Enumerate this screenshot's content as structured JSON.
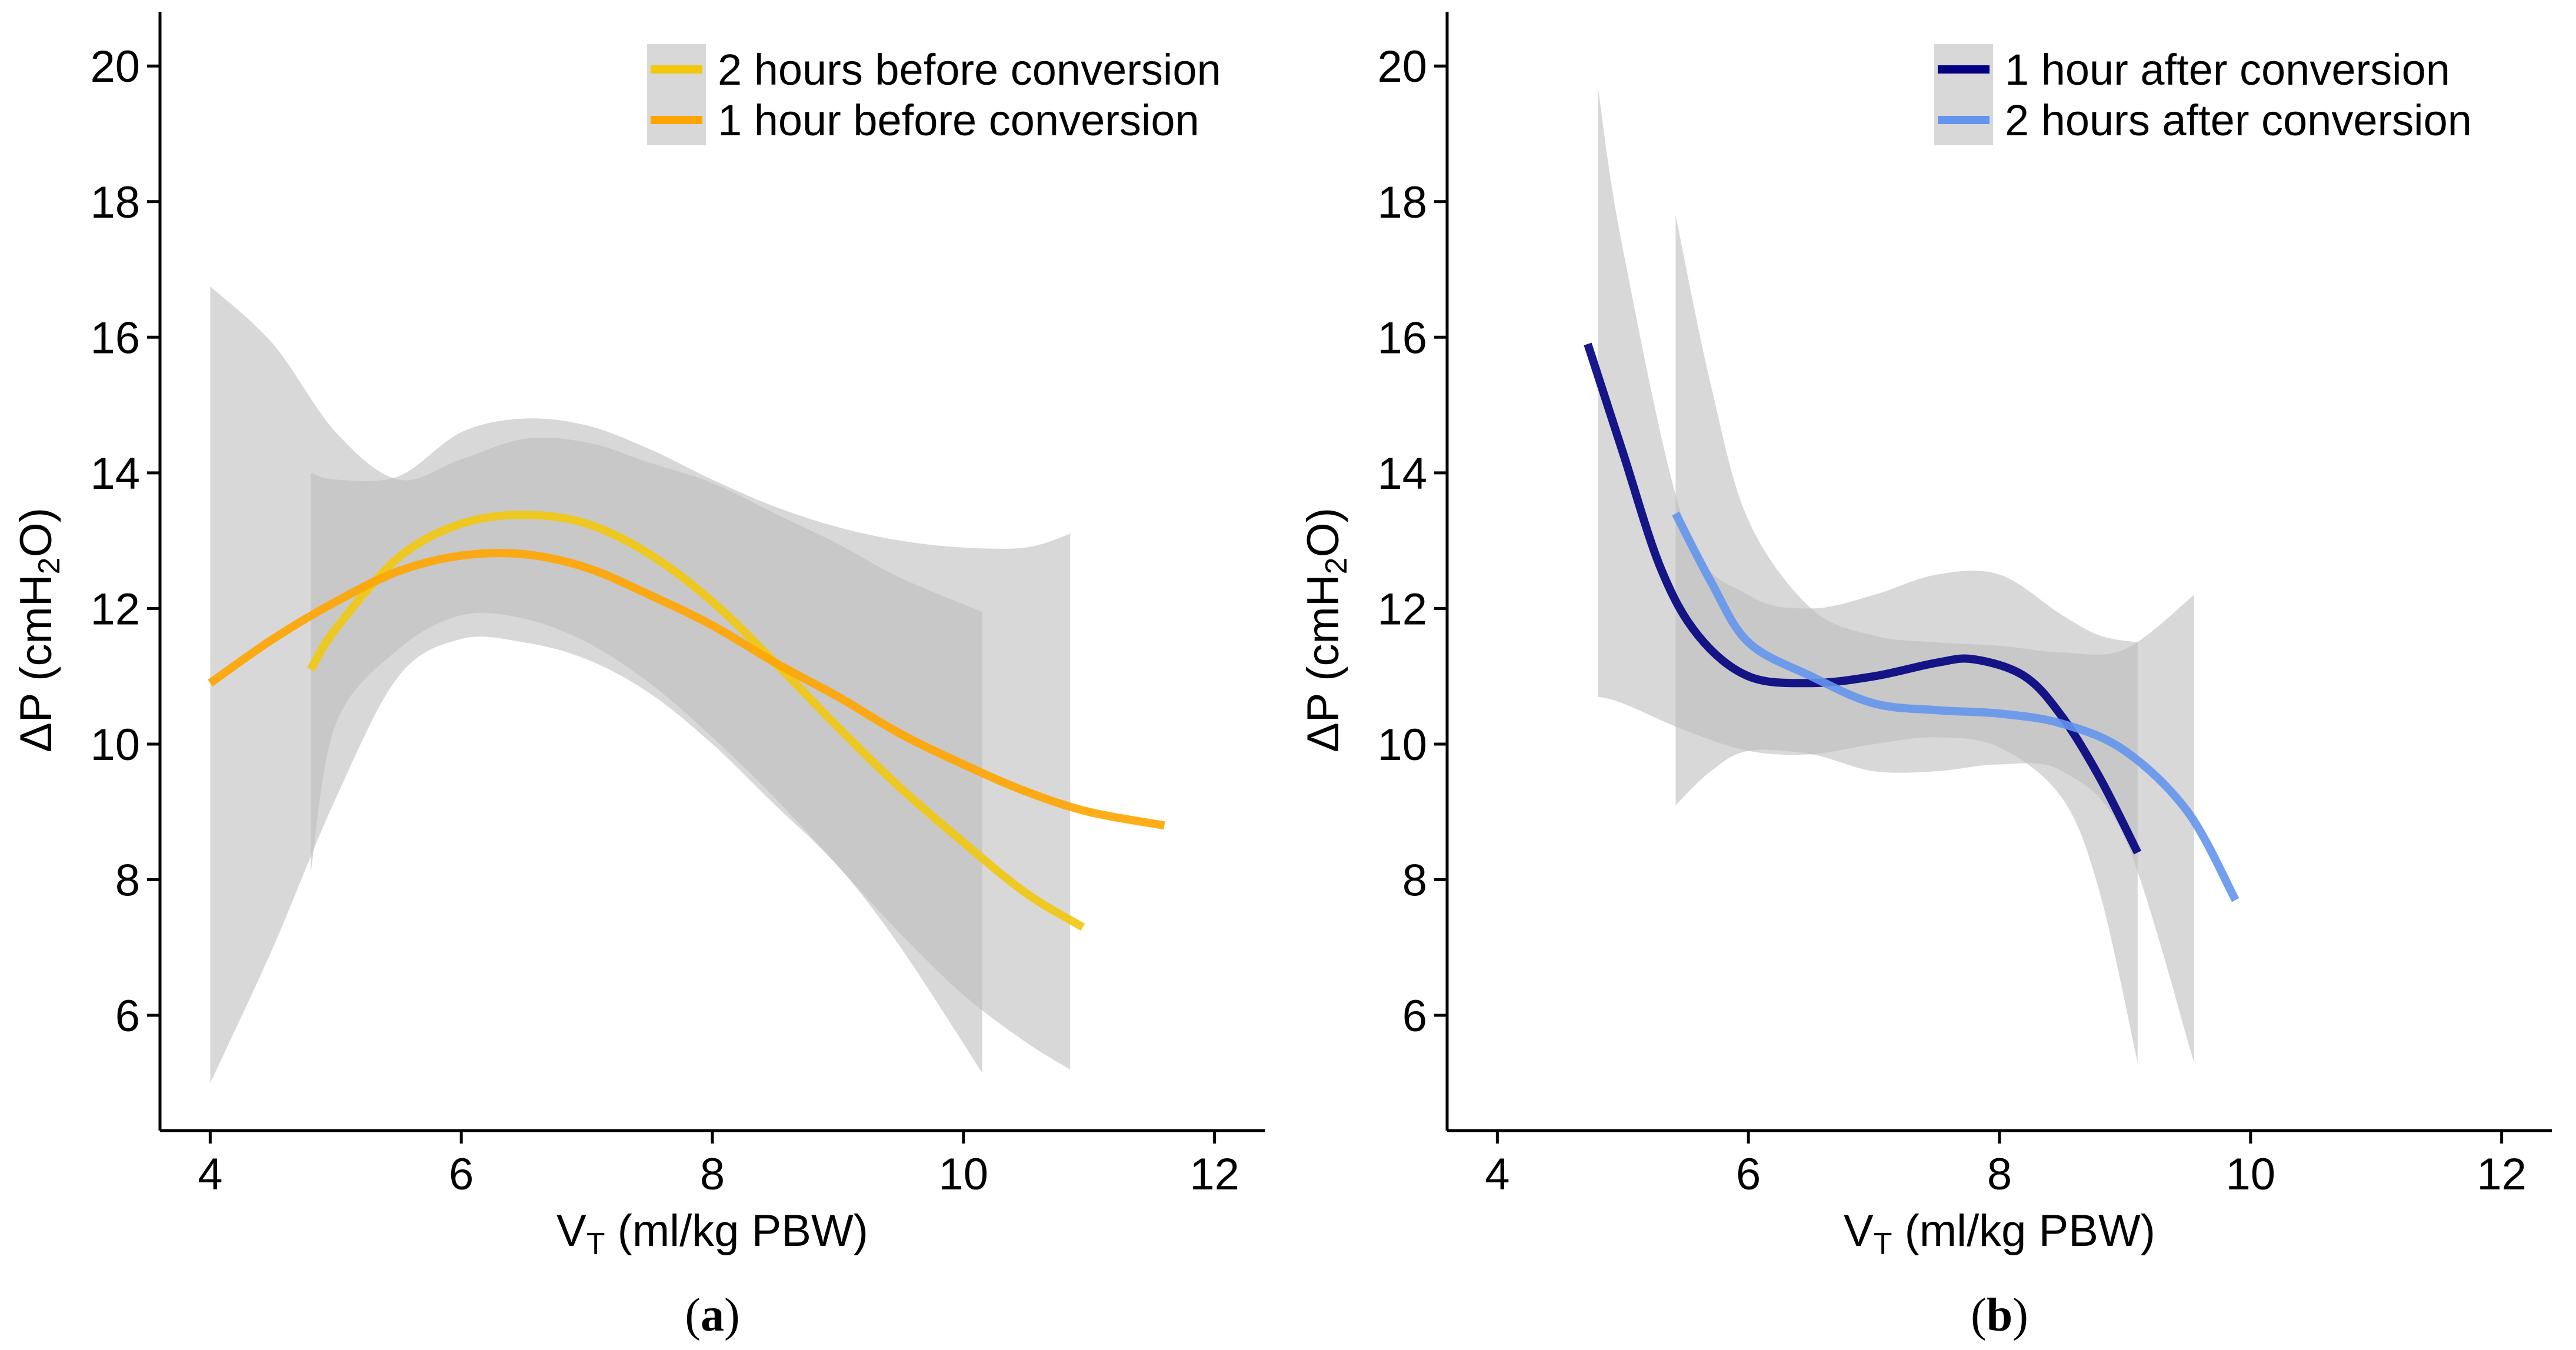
{
  "colors": {
    "two_hours_before": "#F2C80F",
    "one_hour_before": "#FFA500",
    "one_hour_after": "#000080",
    "two_hours_after": "#6495ED",
    "ribbon": "#BEBEBE"
  },
  "chart_data": [
    {
      "type": "line",
      "panel_label": "a",
      "xlabel": {
        "main": "V",
        "sub": "T",
        "rest": " (ml/kg PBW)"
      },
      "ylabel": {
        "pre": "ΔP (cmH",
        "sub": "2",
        "post": "O)"
      },
      "xlim": [
        3.6,
        12.4
      ],
      "ylim": [
        4.3,
        20.8
      ],
      "xticks": [
        4,
        6,
        8,
        10,
        12
      ],
      "yticks": [
        6,
        8,
        10,
        12,
        14,
        16,
        18,
        20
      ],
      "grid": false,
      "legend_position": "top-right",
      "series": [
        {
          "name": "2 hours before conversion",
          "color_key": "two_hours_before",
          "x": [
            4.8,
            5.0,
            5.5,
            6.0,
            6.5,
            7.0,
            7.5,
            8.0,
            8.5,
            9.0,
            9.5,
            10.0,
            10.5,
            10.95
          ],
          "y": [
            11.1,
            11.7,
            12.75,
            13.25,
            13.38,
            13.25,
            12.8,
            12.1,
            11.2,
            10.25,
            9.35,
            8.55,
            7.8,
            7.3
          ],
          "ci_x": [
            4.8,
            5.0,
            5.5,
            6.0,
            6.5,
            7.0,
            7.5,
            8.0,
            8.5,
            9.0,
            9.5,
            10.0,
            10.5,
            10.85
          ],
          "ci_lower": [
            8.1,
            10.3,
            11.4,
            11.9,
            11.85,
            11.5,
            10.9,
            10.1,
            9.2,
            8.2,
            7.2,
            6.3,
            5.6,
            5.2
          ],
          "ci_upper": [
            14.0,
            13.9,
            13.95,
            14.6,
            14.8,
            14.7,
            14.35,
            13.9,
            13.5,
            13.2,
            13.0,
            12.9,
            12.9,
            13.1
          ]
        },
        {
          "name": "1 hour before conversion",
          "color_key": "one_hour_before",
          "x": [
            4.0,
            4.5,
            5.0,
            5.5,
            6.0,
            6.5,
            7.0,
            7.5,
            8.0,
            8.5,
            9.0,
            9.5,
            10.0,
            10.5,
            11.0,
            11.6
          ],
          "y": [
            10.9,
            11.55,
            12.1,
            12.55,
            12.78,
            12.8,
            12.6,
            12.2,
            11.75,
            11.2,
            10.7,
            10.15,
            9.7,
            9.3,
            9.0,
            8.8
          ],
          "ci_x": [
            4.0,
            4.5,
            5.0,
            5.5,
            6.0,
            6.5,
            7.0,
            7.5,
            8.0,
            8.5,
            9.0,
            9.5,
            10.15
          ],
          "ci_lower": [
            5.0,
            7.0,
            9.2,
            11.0,
            11.55,
            11.5,
            11.25,
            10.75,
            10.0,
            9.1,
            8.2,
            7.0,
            5.15
          ],
          "ci_upper": [
            16.75,
            15.9,
            14.6,
            13.9,
            14.2,
            14.5,
            14.45,
            14.15,
            13.85,
            13.4,
            12.95,
            12.45,
            11.95
          ]
        }
      ]
    },
    {
      "type": "line",
      "panel_label": "b",
      "xlabel": {
        "main": "V",
        "sub": "T",
        "rest": " (ml/kg PBW)"
      },
      "ylabel": {
        "pre": "ΔP (cmH",
        "sub": "2",
        "post": "O)"
      },
      "xlim": [
        3.6,
        12.4
      ],
      "ylim": [
        4.3,
        20.8
      ],
      "xticks": [
        4,
        6,
        8,
        10,
        12
      ],
      "yticks": [
        6,
        8,
        10,
        12,
        14,
        16,
        18,
        20
      ],
      "grid": false,
      "legend_position": "top-right",
      "series": [
        {
          "name": "1 hour after conversion",
          "color_key": "one_hour_after",
          "x": [
            4.72,
            5.0,
            5.3,
            5.6,
            6.0,
            6.5,
            7.0,
            7.5,
            7.8,
            8.2,
            8.5,
            8.8,
            9.1
          ],
          "y": [
            15.9,
            14.3,
            12.6,
            11.6,
            11.0,
            10.9,
            11.0,
            11.2,
            11.25,
            11.0,
            10.4,
            9.5,
            8.4
          ],
          "ci_x": [
            4.8,
            5.0,
            5.5,
            6.0,
            6.5,
            7.0,
            7.5,
            8.0,
            8.5,
            8.8,
            9.1
          ],
          "ci_lower": [
            10.7,
            10.6,
            10.2,
            9.9,
            9.85,
            10.0,
            10.1,
            9.95,
            9.2,
            7.8,
            5.3
          ],
          "ci_upper": [
            19.7,
            17.3,
            13.2,
            12.2,
            12.0,
            12.2,
            12.5,
            12.5,
            11.9,
            11.6,
            11.5
          ]
        },
        {
          "name": "2 hours after conversion",
          "color_key": "two_hours_after",
          "x": [
            5.42,
            5.7,
            6.0,
            6.5,
            7.0,
            7.5,
            8.0,
            8.5,
            9.0,
            9.5,
            9.88
          ],
          "y": [
            13.4,
            12.4,
            11.5,
            11.0,
            10.6,
            10.5,
            10.45,
            10.3,
            9.9,
            9.0,
            7.7
          ],
          "ci_x": [
            5.42,
            5.7,
            6.0,
            6.5,
            7.0,
            7.5,
            8.0,
            8.5,
            9.0,
            9.55
          ],
          "ci_lower": [
            9.1,
            9.6,
            9.9,
            9.85,
            9.6,
            9.6,
            9.7,
            9.6,
            8.6,
            5.3
          ],
          "ci_upper": [
            17.8,
            15.3,
            13.3,
            12.0,
            11.6,
            11.5,
            11.45,
            11.35,
            11.4,
            12.2
          ]
        }
      ]
    }
  ]
}
